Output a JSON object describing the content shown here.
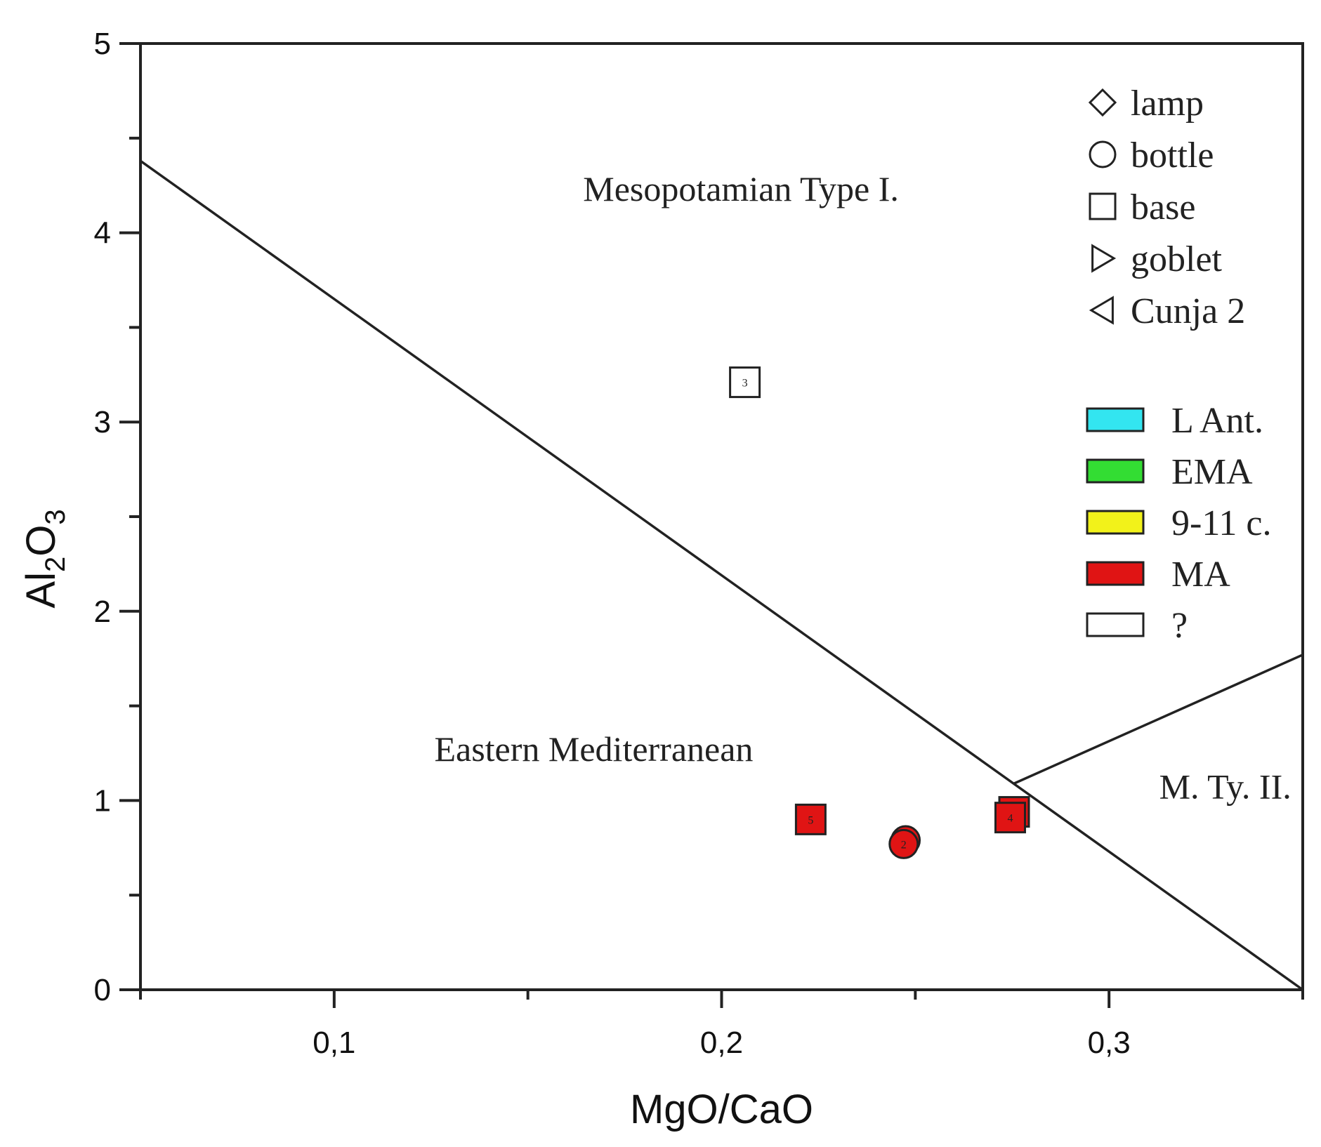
{
  "chart_data": {
    "type": "scatter",
    "title": "",
    "xlabel": "MgO/CaO",
    "ylabel": "Al2O3",
    "ylabel_parts": {
      "a": "Al",
      "sub1": "2",
      "b": "O",
      "sub2": "3"
    },
    "xlim": [
      0.05,
      0.35
    ],
    "ylim": [
      0,
      5
    ],
    "x_ticks": [
      {
        "value": 0.1,
        "label": "0,1"
      },
      {
        "value": 0.2,
        "label": "0,2"
      },
      {
        "value": 0.3,
        "label": "0,3"
      }
    ],
    "x_minor_ticks": [
      0.05,
      0.15,
      0.25,
      0.35
    ],
    "y_ticks": [
      {
        "value": 0,
        "label": "0"
      },
      {
        "value": 1,
        "label": "1"
      },
      {
        "value": 2,
        "label": "2"
      },
      {
        "value": 3,
        "label": "3"
      },
      {
        "value": 4,
        "label": "4"
      },
      {
        "value": 5,
        "label": "5"
      }
    ],
    "y_minor_ticks": [
      0.5,
      1.5,
      2.5,
      3.5,
      4.5
    ],
    "boundary_lines": [
      {
        "name": "main-boundary",
        "points": [
          [
            0.05,
            4.38
          ],
          [
            0.35,
            0.0
          ]
        ]
      },
      {
        "name": "type-ii-boundary",
        "points": [
          [
            0.2755,
            1.09
          ],
          [
            0.35,
            1.77
          ]
        ]
      }
    ],
    "regions": [
      {
        "name": "mesopotamian-type-i",
        "label": "Mesopotamian Type I.",
        "x": 0.205,
        "y": 4.17,
        "anchor": "middle"
      },
      {
        "name": "eastern-mediterranean",
        "label": "Eastern Mediterranean",
        "x": 0.167,
        "y": 1.21,
        "anchor": "middle"
      },
      {
        "name": "m-ty-ii",
        "label": "M. Ty. II.",
        "x": 0.33,
        "y": 1.01,
        "anchor": "middle"
      }
    ],
    "shape_legend": [
      {
        "shape": "diamond",
        "label": "lamp"
      },
      {
        "shape": "circle",
        "label": "bottle"
      },
      {
        "shape": "square",
        "label": "base"
      },
      {
        "shape": "triangle-right",
        "label": "goblet"
      },
      {
        "shape": "triangle-left",
        "label": "Cunja 2"
      }
    ],
    "color_legend": [
      {
        "color": "#33e5f0",
        "label": "L Ant."
      },
      {
        "color": "#33dd33",
        "label": "EMA"
      },
      {
        "color": "#f2f21a",
        "label": "9-11 c."
      },
      {
        "color": "#e01414",
        "label": "MA"
      },
      {
        "color": "#ffffff",
        "label": "?"
      }
    ],
    "points": [
      {
        "x": 0.206,
        "y": 3.21,
        "shape": "square",
        "color": "#ffffff",
        "label": "3"
      },
      {
        "x": 0.223,
        "y": 0.9,
        "shape": "square",
        "color": "#e01414",
        "label": "5"
      },
      {
        "x": 0.2475,
        "y": 0.79,
        "shape": "circle",
        "color": "#e01414",
        "label": ""
      },
      {
        "x": 0.247,
        "y": 0.77,
        "shape": "circle",
        "color": "#e01414",
        "label": "2"
      },
      {
        "x": 0.2755,
        "y": 0.94,
        "shape": "square",
        "color": "#e01414",
        "label": ""
      },
      {
        "x": 0.2745,
        "y": 0.91,
        "shape": "square",
        "color": "#e01414",
        "label": "4"
      }
    ]
  }
}
